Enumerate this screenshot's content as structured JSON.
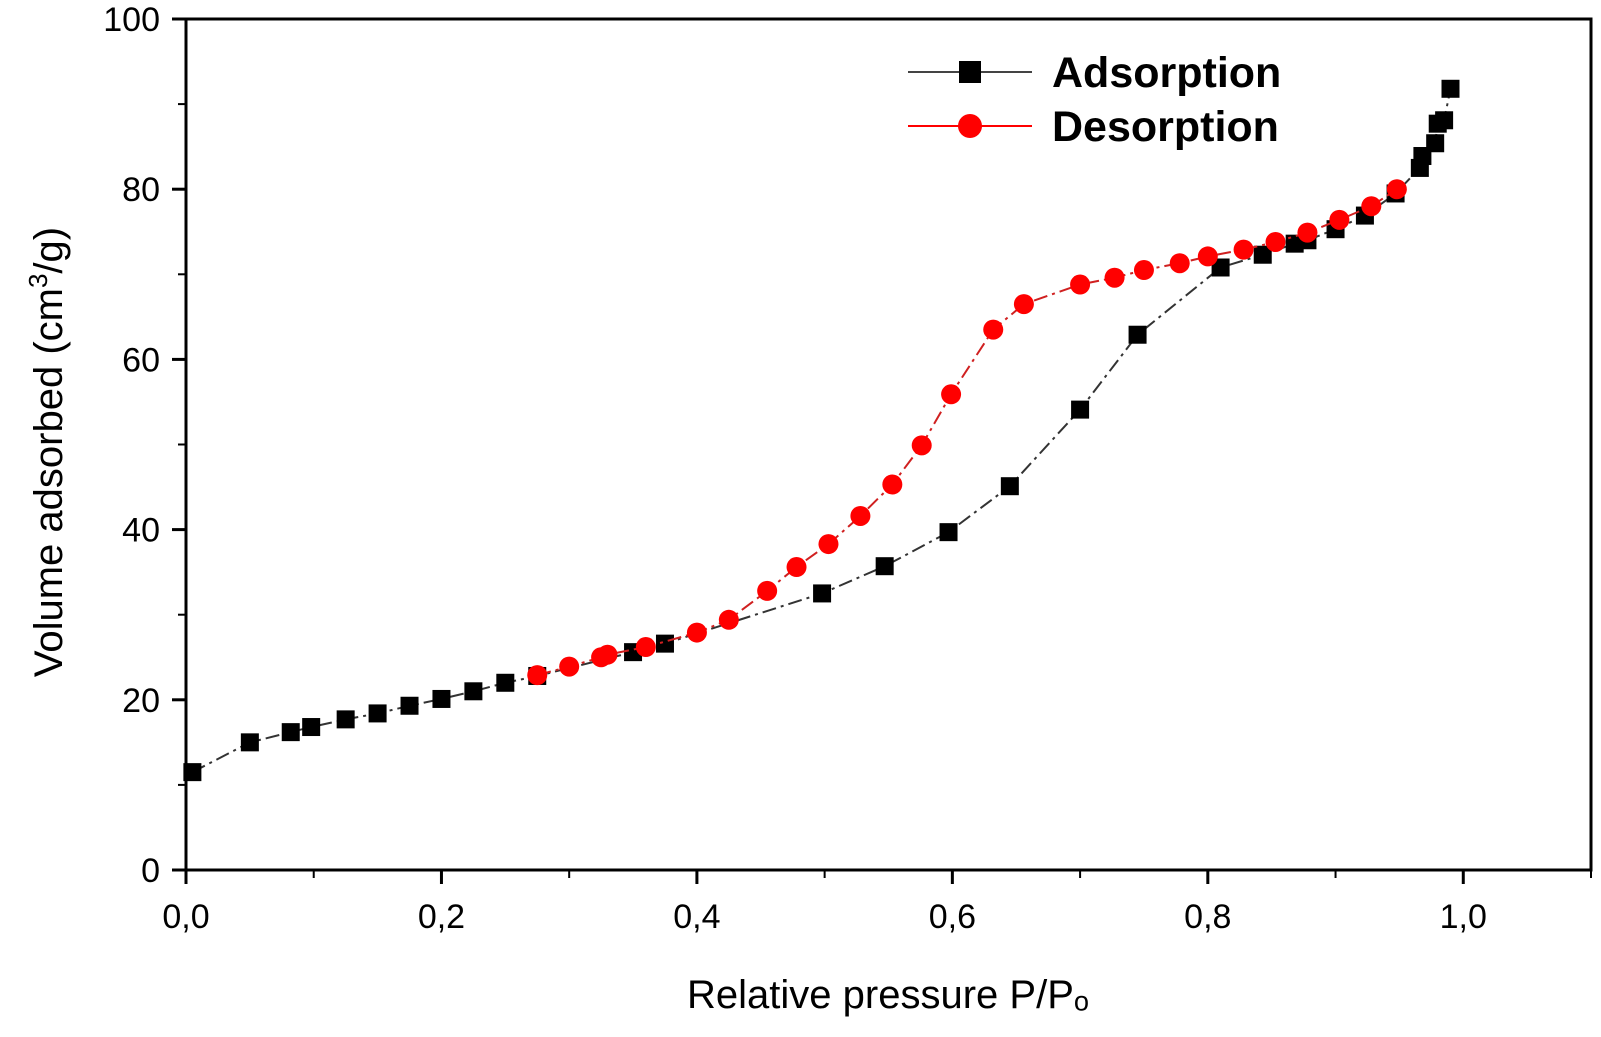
{
  "chart_data": {
    "type": "line",
    "xlabel": "Relative pressure P/Pₒ",
    "ylabel_main": "Volume adsorbed (cm",
    "ylabel_sup": "3",
    "ylabel_end": "/g)",
    "xlim": [
      0.0,
      1.1
    ],
    "ylim": [
      0,
      100
    ],
    "x_ticks": [
      0.0,
      0.2,
      0.4,
      0.6,
      0.8,
      1.0
    ],
    "x_tick_labels": [
      "0,0",
      "0,2",
      "0,4",
      "0,6",
      "0,8",
      "1,0"
    ],
    "y_ticks": [
      0,
      20,
      40,
      60,
      80,
      100
    ],
    "y_tick_labels": [
      "0",
      "20",
      "40",
      "60",
      "80",
      "100"
    ],
    "grid": false,
    "legend_position": "top-right",
    "series": [
      {
        "name": "Adsorption",
        "color": "#000000",
        "marker": "square",
        "x": [
          0.005,
          0.05,
          0.082,
          0.098,
          0.125,
          0.15,
          0.175,
          0.2,
          0.225,
          0.25,
          0.275,
          0.35,
          0.375,
          0.498,
          0.547,
          0.597,
          0.645,
          0.7,
          0.745,
          0.81,
          0.843,
          0.868,
          0.878,
          0.9,
          0.923,
          0.947,
          0.966,
          0.968,
          0.978,
          0.98,
          0.985,
          0.99
        ],
        "y": [
          11.5,
          15.0,
          16.2,
          16.8,
          17.7,
          18.4,
          19.3,
          20.1,
          21.0,
          22.0,
          22.8,
          25.6,
          26.6,
          32.5,
          35.7,
          39.7,
          45.1,
          54.1,
          62.9,
          70.8,
          72.3,
          73.6,
          74.0,
          75.3,
          76.9,
          79.5,
          82.5,
          83.9,
          85.4,
          87.7,
          88.1,
          91.8
        ]
      },
      {
        "name": "Desorption",
        "color": "#ff0000",
        "marker": "circle",
        "x": [
          0.275,
          0.3,
          0.325,
          0.33,
          0.36,
          0.4,
          0.425,
          0.455,
          0.478,
          0.503,
          0.528,
          0.553,
          0.576,
          0.599,
          0.632,
          0.656,
          0.7,
          0.727,
          0.75,
          0.778,
          0.8,
          0.828,
          0.853,
          0.878,
          0.903,
          0.928,
          0.948
        ],
        "y": [
          22.9,
          23.9,
          25.0,
          25.3,
          26.2,
          27.9,
          29.4,
          32.8,
          35.6,
          38.3,
          41.6,
          45.3,
          49.9,
          55.9,
          63.5,
          66.5,
          68.8,
          69.6,
          70.5,
          71.3,
          72.1,
          72.9,
          73.8,
          74.9,
          76.4,
          78.0,
          80.0
        ]
      }
    ]
  }
}
